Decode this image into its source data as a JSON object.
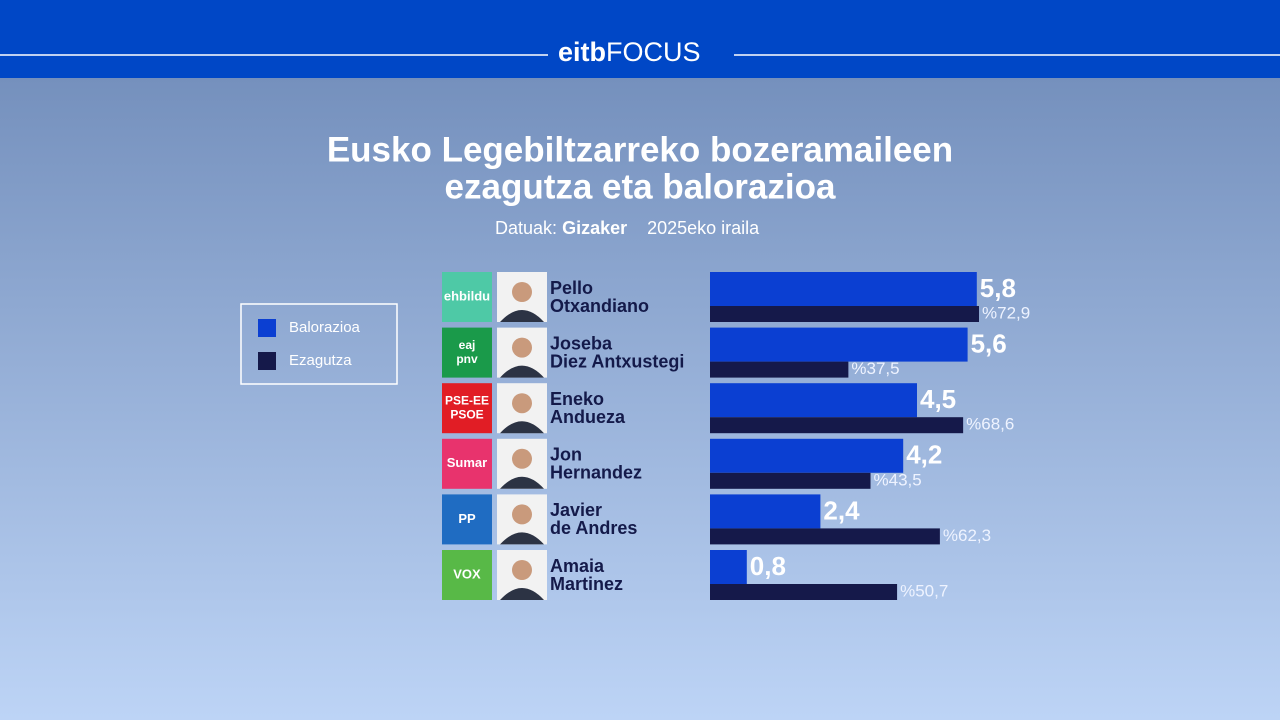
{
  "header": {
    "logo_a": "eitb",
    "logo_b": "FOCUS"
  },
  "chart_data": {
    "type": "bar",
    "orientation": "horizontal",
    "title": [
      "Eusko Legebiltzarreko bozeramaileen",
      "ezagutza eta balorazioa"
    ],
    "source_label": "Datuak:",
    "source": "Gizaker",
    "date": "2025eko iraila",
    "categories": [
      [
        "Pello",
        "Otxandiano"
      ],
      [
        "Joseba",
        "Diez Antxustegi"
      ],
      [
        "Eneko",
        "Andueza"
      ],
      [
        "Jon",
        "Hernandez"
      ],
      [
        "Javier",
        "de Andres"
      ],
      [
        "Amaia",
        "Martinez"
      ]
    ],
    "parties": [
      [
        "ehbildu"
      ],
      [
        "eaj",
        "pnv"
      ],
      [
        "PSE-EE",
        "PSOE"
      ],
      [
        "Sumar"
      ],
      [
        "PP"
      ],
      [
        "VOX"
      ]
    ],
    "series": [
      {
        "name": "Balorazioa",
        "color": "#0b3fd2",
        "values": [
          5.8,
          5.6,
          4.5,
          4.2,
          2.4,
          0.8
        ],
        "value_labels": [
          "5,8",
          "5,6",
          "4,5",
          "4,2",
          "2,4",
          "0,8"
        ]
      },
      {
        "name": "Ezagutza",
        "color": "#15194a",
        "values": [
          72.9,
          37.5,
          68.6,
          43.5,
          62.3,
          50.7
        ],
        "value_labels": [
          "%72,9",
          "%37,5",
          "%68,6",
          "%43,5",
          "%62,3",
          "%50,7"
        ]
      }
    ]
  }
}
